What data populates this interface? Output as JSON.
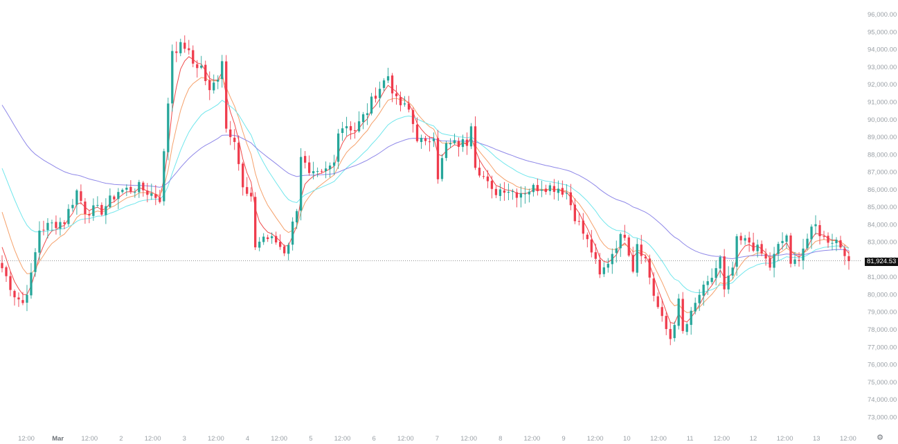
{
  "chart_data": {
    "type": "candlestick",
    "ylim": [
      72500,
      96500
    ],
    "y_ticks": [
      "96,000.00",
      "95,000.00",
      "94,000.00",
      "93,000.00",
      "92,000.00",
      "91,000.00",
      "90,000.00",
      "89,000.00",
      "88,000.00",
      "87,000.00",
      "86,000.00",
      "85,000.00",
      "84,000.00",
      "83,000.00",
      "82,000.00",
      "81,000.00",
      "80,000.00",
      "79,000.00",
      "78,000.00",
      "77,000.00",
      "76,000.00",
      "75,000.00",
      "74,000.00",
      "73,000.00"
    ],
    "x_ticks": [
      "12:00",
      "Mar",
      "12:00",
      "2",
      "12:00",
      "3",
      "12:00",
      "4",
      "12:00",
      "5",
      "12:00",
      "6",
      "12:00",
      "7",
      "12:00",
      "8",
      "12:00",
      "9",
      "12:00",
      "10",
      "12:00",
      "11",
      "12:00",
      "12",
      "12:00",
      "13",
      "12:00"
    ],
    "x_ticks_major": [
      "Mar"
    ],
    "current_price": 81924.53,
    "current_price_label": "81,924.53",
    "grid": false,
    "anchors": [
      [
        0,
        81500
      ],
      [
        3,
        80000
      ],
      [
        5,
        79500
      ],
      [
        7,
        81000
      ],
      [
        9,
        83700
      ],
      [
        12,
        84000
      ],
      [
        15,
        84200
      ],
      [
        18,
        85900
      ],
      [
        20,
        84800
      ],
      [
        24,
        84800
      ],
      [
        28,
        85900
      ],
      [
        33,
        86100
      ],
      [
        38,
        85500
      ],
      [
        39,
        88000
      ],
      [
        40,
        91000
      ],
      [
        41,
        94000
      ],
      [
        44,
        94200
      ],
      [
        46,
        93200
      ],
      [
        48,
        93000
      ],
      [
        50,
        91500
      ],
      [
        52,
        92500
      ],
      [
        53,
        93500
      ],
      [
        54,
        89500
      ],
      [
        56,
        89000
      ],
      [
        58,
        86000
      ],
      [
        60,
        85300
      ],
      [
        61,
        82800
      ],
      [
        63,
        83300
      ],
      [
        66,
        83000
      ],
      [
        68,
        82500
      ],
      [
        69,
        83000
      ],
      [
        70,
        84000
      ],
      [
        71,
        85000
      ],
      [
        72,
        88000
      ],
      [
        74,
        86700
      ],
      [
        77,
        86800
      ],
      [
        80,
        87500
      ],
      [
        81,
        89500
      ],
      [
        83,
        89700
      ],
      [
        85,
        89400
      ],
      [
        88,
        90500
      ],
      [
        90,
        91500
      ],
      [
        93,
        92500
      ],
      [
        95,
        91000
      ],
      [
        98,
        90500
      ],
      [
        100,
        89000
      ],
      [
        102,
        88500
      ],
      [
        104,
        89200
      ],
      [
        105,
        86800
      ],
      [
        107,
        88500
      ],
      [
        110,
        88600
      ],
      [
        112,
        88700
      ],
      [
        113,
        89900
      ],
      [
        114,
        87500
      ],
      [
        116,
        86700
      ],
      [
        118,
        85800
      ],
      [
        121,
        86100
      ],
      [
        124,
        85800
      ],
      [
        127,
        86000
      ],
      [
        130,
        86200
      ],
      [
        134,
        86100
      ],
      [
        136,
        85800
      ],
      [
        138,
        84500
      ],
      [
        140,
        83500
      ],
      [
        142,
        82500
      ],
      [
        144,
        81000
      ],
      [
        146,
        81900
      ],
      [
        148,
        82900
      ],
      [
        150,
        83500
      ],
      [
        152,
        81500
      ],
      [
        153,
        83000
      ],
      [
        155,
        82000
      ],
      [
        157,
        80000
      ],
      [
        159,
        78500
      ],
      [
        161,
        77500
      ],
      [
        163,
        79500
      ],
      [
        164,
        77800
      ],
      [
        166,
        78800
      ],
      [
        168,
        80000
      ],
      [
        170,
        80500
      ],
      [
        173,
        82000
      ],
      [
        174,
        80100
      ],
      [
        176,
        81500
      ],
      [
        177,
        83000
      ],
      [
        180,
        83000
      ],
      [
        183,
        82300
      ],
      [
        185,
        81600
      ],
      [
        187,
        82700
      ],
      [
        189,
        83400
      ],
      [
        190,
        81500
      ],
      [
        192,
        82200
      ],
      [
        194,
        83200
      ],
      [
        196,
        83900
      ],
      [
        198,
        83200
      ],
      [
        201,
        83100
      ],
      [
        203,
        82500
      ],
      [
        204,
        81900
      ]
    ],
    "series": [
      {
        "name": "",
        "color": "#f04a4a",
        "period": 4
      },
      {
        "name": "",
        "color": "#f5a06a",
        "period": 9
      },
      {
        "name": "",
        "color": "#6fe6ec",
        "period": 20
      },
      {
        "name": "",
        "color": "#8e87e8",
        "period": 50
      }
    ],
    "colors": {
      "up": "#26a69a",
      "down": "#ef3b4c"
    }
  },
  "settings_icon": "gear-icon"
}
